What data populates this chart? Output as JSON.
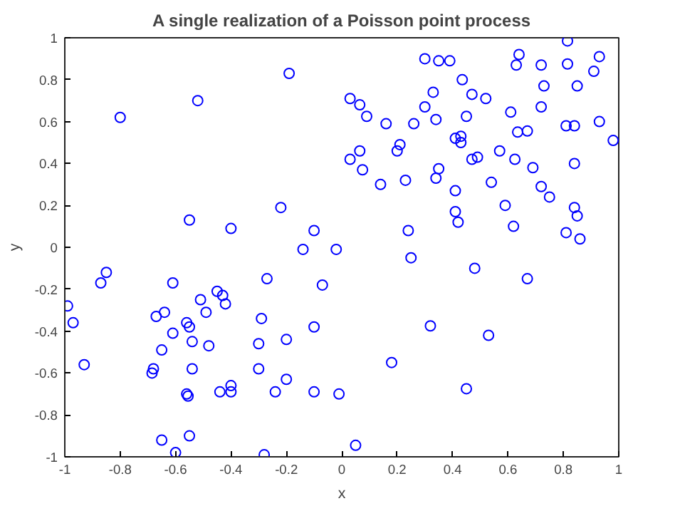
{
  "chart_data": {
    "type": "scatter",
    "title": "A single realization of a Poisson point process",
    "xlabel": "x",
    "ylabel": "y",
    "xlim": [
      -1,
      1
    ],
    "ylim": [
      -1,
      1
    ],
    "xticks": [
      -1,
      -0.8,
      -0.6,
      -0.4,
      -0.2,
      0,
      0.2,
      0.4,
      0.6,
      0.8,
      1
    ],
    "yticks": [
      -1,
      -0.8,
      -0.6,
      -0.4,
      -0.2,
      0,
      0.2,
      0.4,
      0.6,
      0.8,
      1
    ],
    "grid": false,
    "marker": "circle",
    "series": [
      {
        "color": "#0000ff",
        "x": [
          -0.8,
          -0.52,
          -0.19,
          0.03,
          0.03,
          -0.55,
          -0.4,
          -0.22,
          -0.1,
          -0.14,
          -0.02,
          -0.85,
          -0.87,
          -0.99,
          -0.97,
          -0.93,
          -0.61,
          -0.27,
          -0.07,
          -0.45,
          -0.43,
          -0.42,
          -0.51,
          -0.49,
          -0.64,
          -0.67,
          -0.56,
          -0.55,
          -0.61,
          -0.29,
          -0.54,
          -0.48,
          -0.3,
          -0.2,
          -0.1,
          -0.65,
          -0.68,
          -0.685,
          -0.54,
          -0.3,
          -0.2,
          -0.4,
          -0.4,
          -0.44,
          -0.56,
          -0.555,
          -0.24,
          -0.1,
          -0.01,
          -0.65,
          -0.55,
          -0.6,
          -0.28,
          0.25,
          0.48,
          0.67,
          0.32,
          0.53,
          0.18,
          0.45,
          0.05,
          0.815,
          0.64,
          0.3,
          0.35,
          0.39,
          0.63,
          0.72,
          0.815,
          0.93,
          0.91,
          0.435,
          0.73,
          0.85,
          0.33,
          0.47,
          0.52,
          0.065,
          0.09,
          0.3,
          0.34,
          0.45,
          0.61,
          0.72,
          0.16,
          0.26,
          0.81,
          0.84,
          0.93,
          0.98,
          0.635,
          0.67,
          0.41,
          0.43,
          0.43,
          0.21,
          0.2,
          0.065,
          0.47,
          0.49,
          0.57,
          0.625,
          0.69,
          0.84,
          0.075,
          0.35,
          0.34,
          0.14,
          0.23,
          0.54,
          0.72,
          0.75,
          0.41,
          0.59,
          0.41,
          0.42,
          0.62,
          0.84,
          0.85,
          0.24,
          0.81,
          0.86
        ],
        "values": [
          0.62,
          0.7,
          0.83,
          0.71,
          0.42,
          0.13,
          0.09,
          0.19,
          0.08,
          -0.01,
          -0.01,
          -0.12,
          -0.17,
          -0.28,
          -0.36,
          -0.56,
          -0.17,
          -0.15,
          -0.18,
          -0.21,
          -0.23,
          -0.27,
          -0.25,
          -0.31,
          -0.31,
          -0.33,
          -0.36,
          -0.38,
          -0.41,
          -0.34,
          -0.45,
          -0.47,
          -0.46,
          -0.44,
          -0.38,
          -0.49,
          -0.58,
          -0.6,
          -0.58,
          -0.58,
          -0.63,
          -0.66,
          -0.69,
          -0.69,
          -0.7,
          -0.71,
          -0.69,
          -0.69,
          -0.7,
          -0.92,
          -0.9,
          -0.98,
          -0.99,
          -0.05,
          -0.1,
          -0.15,
          -0.375,
          -0.42,
          -0.55,
          -0.675,
          -0.945,
          0.985,
          0.92,
          0.9,
          0.89,
          0.89,
          0.87,
          0.87,
          0.875,
          0.91,
          0.84,
          0.8,
          0.77,
          0.77,
          0.74,
          0.73,
          0.71,
          0.68,
          0.625,
          0.67,
          0.61,
          0.625,
          0.645,
          0.67,
          0.59,
          0.59,
          0.58,
          0.58,
          0.6,
          0.51,
          0.55,
          0.555,
          0.52,
          0.53,
          0.5,
          0.49,
          0.46,
          0.46,
          0.42,
          0.43,
          0.46,
          0.42,
          0.38,
          0.4,
          0.37,
          0.375,
          0.33,
          0.3,
          0.32,
          0.31,
          0.29,
          0.24,
          0.27,
          0.2,
          0.17,
          0.12,
          0.1,
          0.19,
          0.15,
          0.08,
          0.07,
          0.04
        ]
      }
    ]
  }
}
